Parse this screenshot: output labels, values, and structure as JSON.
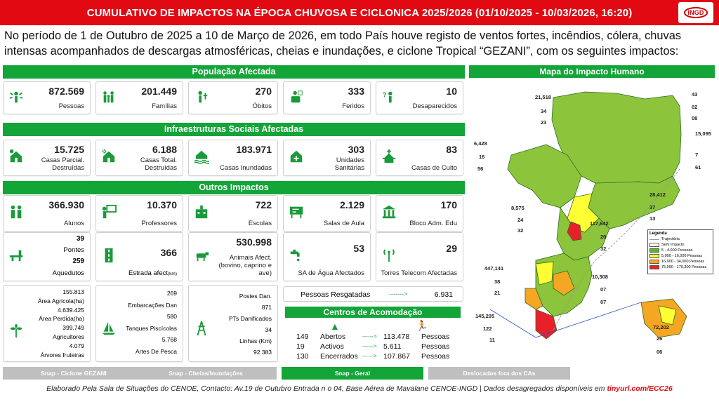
{
  "header": {
    "title": "CUMULATIVO DE IMPACTOS NA ÉPOCA CHUVOSA E CICLONICA 2025/2026 (01/10/2025 - 10/03/2026, 16:20)",
    "logo_text": "INGD",
    "accent_color": "#e10a12"
  },
  "intro": "No período de 1 de Outubro de 2025 a 10 de Março de 2026, em todo País houve registo de ventos fortes, incêndios, cólera, chuvas intensas acompanhados de descargas atmosféricas, cheias e inundações, e ciclone Tropical “GEZANI”, com os seguintes impactos:",
  "sections": {
    "populacao": "População Afectada",
    "infra": "Infraestruturas Sociais Afectadas",
    "outros": "Outros Impactos"
  },
  "populacao": [
    {
      "value": "872.569",
      "label": "Pessoas",
      "icon": "people-burst-icon"
    },
    {
      "value": "201.449",
      "label": "Famílias",
      "icon": "family-icon"
    },
    {
      "value": "270",
      "label": "Óbitos",
      "icon": "death-icon"
    },
    {
      "value": "333",
      "label": "Feridos",
      "icon": "injured-icon"
    },
    {
      "value": "10",
      "label": "Desaparecidos",
      "icon": "missing-person-icon"
    }
  ],
  "infra": [
    {
      "value": "15.725",
      "label": "Casas Parcial. Destruídas",
      "icon": "house-partial-icon"
    },
    {
      "value": "6.188",
      "label": "Casas Total. Destruídas",
      "icon": "house-destroyed-icon"
    },
    {
      "value": "183.971",
      "label": "Casas Inundadas",
      "icon": "house-flooded-icon"
    },
    {
      "value": "303",
      "label": "Unidades Sanitárias",
      "icon": "health-unit-icon"
    },
    {
      "value": "83",
      "label": "Casas de Culto",
      "icon": "church-icon"
    }
  ],
  "outros_row1": [
    {
      "value": "366.930",
      "label": "Alunos",
      "icon": "students-icon"
    },
    {
      "value": "10.370",
      "label": "Professores",
      "icon": "teacher-icon"
    },
    {
      "value": "722",
      "label": "Escolas",
      "icon": "school-icon"
    },
    {
      "value": "2.129",
      "label": "Salas de Aula",
      "icon": "classroom-icon"
    },
    {
      "value": "170",
      "label": "Bloco Adm. Edu",
      "icon": "admin-block-icon"
    }
  ],
  "outros_row2": {
    "pontes_value": "39",
    "pontes_label": "Pontes",
    "aquedutos_value": "259",
    "aquedutos_label": "Aquedutos",
    "estrada_value": "366",
    "estrada_label": "Estrada afect",
    "estrada_unit": "(km)",
    "animais_value": "530.998",
    "animais_label": "Animais Afect. (bovino, caprino e ave)",
    "sa_value": "53",
    "sa_label": "SA de Água Afectados",
    "torres_value": "29",
    "torres_label": "Torres Telecom Afectadas"
  },
  "outros_row3": {
    "agri": [
      {
        "value": "155.813"
      },
      {
        "value": "Área Agrícola(ha)"
      },
      {
        "value": "4.639.425"
      },
      {
        "value": "Área Perdida(ha)"
      },
      {
        "value": "399.749"
      },
      {
        "value": "Agricultores"
      },
      {
        "value": "4.079"
      },
      {
        "value": "Árvores fruteiras"
      }
    ],
    "pesca": [
      {
        "value": "269"
      },
      {
        "value": "Embarcações Dan"
      },
      {
        "value": "580"
      },
      {
        "value": "Tanques Piscícolas"
      },
      {
        "value": "5.768"
      },
      {
        "value": "Artes De Pesca"
      }
    ],
    "energia": [
      {
        "value": "Postes Dan."
      },
      {
        "value": "871"
      },
      {
        "value": "PTs Danificados"
      },
      {
        "value": "34"
      },
      {
        "value": "Linhas (Km)"
      },
      {
        "value": "92.383"
      }
    ]
  },
  "resgatadas": {
    "label": "Pessoas Resgatadas",
    "arrow": "------->",
    "value": "6.931"
  },
  "acomodacao": {
    "title": "Centros de Acomodação",
    "rows": [
      {
        "n": "149",
        "status": "Abertos",
        "arrow": "------>",
        "value": "113.478",
        "unit": "Pessoas"
      },
      {
        "n": "19",
        "status": "Activos",
        "arrow": "------>",
        "value": "5.611",
        "unit": "Pessoas"
      },
      {
        "n": "130",
        "status": "Encerrados",
        "arrow": "------>",
        "value": "107.867",
        "unit": "Pessoas"
      }
    ]
  },
  "map": {
    "title": "Mapa do Impacto Humano",
    "annotations": [
      "21,518",
      "34",
      "23",
      "43",
      "02",
      "08",
      "6,428",
      "16",
      "56",
      "15,095",
      "7",
      "61",
      "8,575",
      "24",
      "32",
      "28,412",
      "37",
      "13",
      "117,642",
      "20",
      "32",
      "447,141",
      "38",
      "21",
      "10,308",
      "07",
      "07",
      "145,205",
      "122",
      "11",
      "72,202",
      "26",
      "06"
    ],
    "legend": {
      "title": "Legenda",
      "items": [
        {
          "label": "Trajectória",
          "color": "#999999"
        },
        {
          "label": "Sem Impacto",
          "color": "#ffffff"
        },
        {
          "label": "5 - 4.000 Pessoas",
          "color": "#5cb531"
        },
        {
          "label": "5,000 - 16,000 Pessoas",
          "color": "#ffff33"
        },
        {
          "label": "16,000 - 34,000 Pessoas",
          "color": "#f5a623"
        },
        {
          "label": "75,000 - 170,300 Pessoas",
          "color": "#e8202a"
        }
      ]
    }
  },
  "tabs": [
    {
      "label": "Snap - Ciclone GEZANI",
      "active": false
    },
    {
      "label": "Snap - Cheias/Inundações",
      "active": false
    },
    {
      "label": "Snap - Geral",
      "active": true
    },
    {
      "label": "Deslocados fora dos CAs",
      "active": false
    }
  ],
  "footer": {
    "text": "Elaborado Pela Sala de Situações do CENOE, Contacto: Av.19 de Outubro Entrada n o 04, Base Aérea de Mavalane CENOE-INGD | Dados desagregados disponíveis em ",
    "link": "tinyurl.com/ECC26"
  }
}
